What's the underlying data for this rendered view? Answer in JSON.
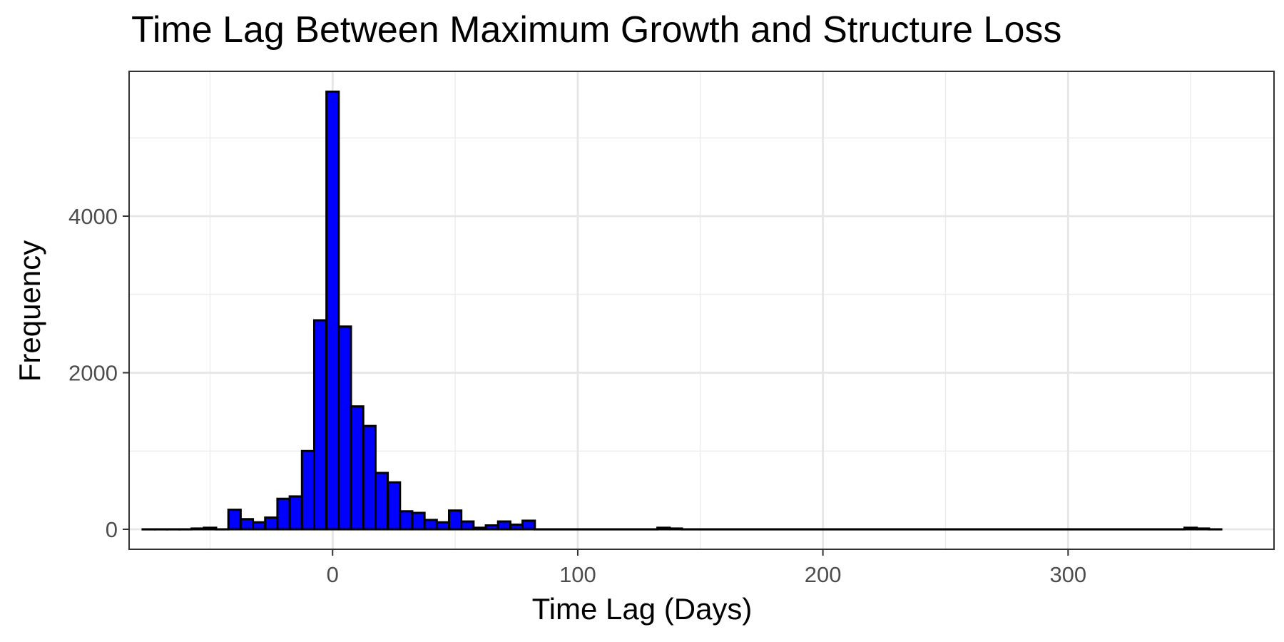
{
  "chart_data": {
    "type": "bar",
    "title": "Time Lag Between Maximum Growth and Structure Loss",
    "xlabel": "Time Lag (Days)",
    "ylabel": "Frequency",
    "xlim": [
      -83,
      384
    ],
    "ylim": [
      -255,
      5850
    ],
    "x_ticks": [
      0,
      100,
      200,
      300
    ],
    "y_ticks": [
      0,
      2000,
      4000
    ],
    "grid": true,
    "legend": "none",
    "bin_width": 5,
    "bars": [
      {
        "x0": -77.5,
        "x1": -72.5,
        "value": 0
      },
      {
        "x0": -72.5,
        "x1": -67.5,
        "value": 0
      },
      {
        "x0": -67.5,
        "x1": -62.5,
        "value": 0
      },
      {
        "x0": -62.5,
        "x1": -57.5,
        "value": 0
      },
      {
        "x0": -57.5,
        "x1": -52.5,
        "value": 10
      },
      {
        "x0": -52.5,
        "x1": -47.5,
        "value": 20
      },
      {
        "x0": -47.5,
        "x1": -42.5,
        "value": 0
      },
      {
        "x0": -42.5,
        "x1": -37.5,
        "value": 250
      },
      {
        "x0": -37.5,
        "x1": -32.5,
        "value": 130
      },
      {
        "x0": -32.5,
        "x1": -27.5,
        "value": 90
      },
      {
        "x0": -27.5,
        "x1": -22.5,
        "value": 150
      },
      {
        "x0": -22.5,
        "x1": -17.5,
        "value": 390
      },
      {
        "x0": -17.5,
        "x1": -12.5,
        "value": 420
      },
      {
        "x0": -12.5,
        "x1": -7.5,
        "value": 1000
      },
      {
        "x0": -7.5,
        "x1": -2.5,
        "value": 2670
      },
      {
        "x0": -2.5,
        "x1": 2.5,
        "value": 5590
      },
      {
        "x0": 2.5,
        "x1": 7.5,
        "value": 2590
      },
      {
        "x0": 7.5,
        "x1": 12.5,
        "value": 1570
      },
      {
        "x0": 12.5,
        "x1": 17.5,
        "value": 1320
      },
      {
        "x0": 17.5,
        "x1": 22.5,
        "value": 720
      },
      {
        "x0": 22.5,
        "x1": 27.5,
        "value": 600
      },
      {
        "x0": 27.5,
        "x1": 32.5,
        "value": 230
      },
      {
        "x0": 32.5,
        "x1": 37.5,
        "value": 210
      },
      {
        "x0": 37.5,
        "x1": 42.5,
        "value": 120
      },
      {
        "x0": 42.5,
        "x1": 47.5,
        "value": 90
      },
      {
        "x0": 47.5,
        "x1": 52.5,
        "value": 240
      },
      {
        "x0": 52.5,
        "x1": 57.5,
        "value": 100
      },
      {
        "x0": 57.5,
        "x1": 62.5,
        "value": 20
      },
      {
        "x0": 62.5,
        "x1": 67.5,
        "value": 50
      },
      {
        "x0": 67.5,
        "x1": 72.5,
        "value": 100
      },
      {
        "x0": 72.5,
        "x1": 77.5,
        "value": 60
      },
      {
        "x0": 77.5,
        "x1": 82.5,
        "value": 110
      },
      {
        "x0": 82.5,
        "x1": 132.5,
        "value": 0
      },
      {
        "x0": 132.5,
        "x1": 137.5,
        "value": 20
      },
      {
        "x0": 137.5,
        "x1": 142.5,
        "value": 10
      },
      {
        "x0": 142.5,
        "x1": 347.5,
        "value": 0
      },
      {
        "x0": 347.5,
        "x1": 352.5,
        "value": 20
      },
      {
        "x0": 352.5,
        "x1": 357.5,
        "value": 10
      },
      {
        "x0": 357.5,
        "x1": 362.5,
        "value": 0
      }
    ]
  }
}
